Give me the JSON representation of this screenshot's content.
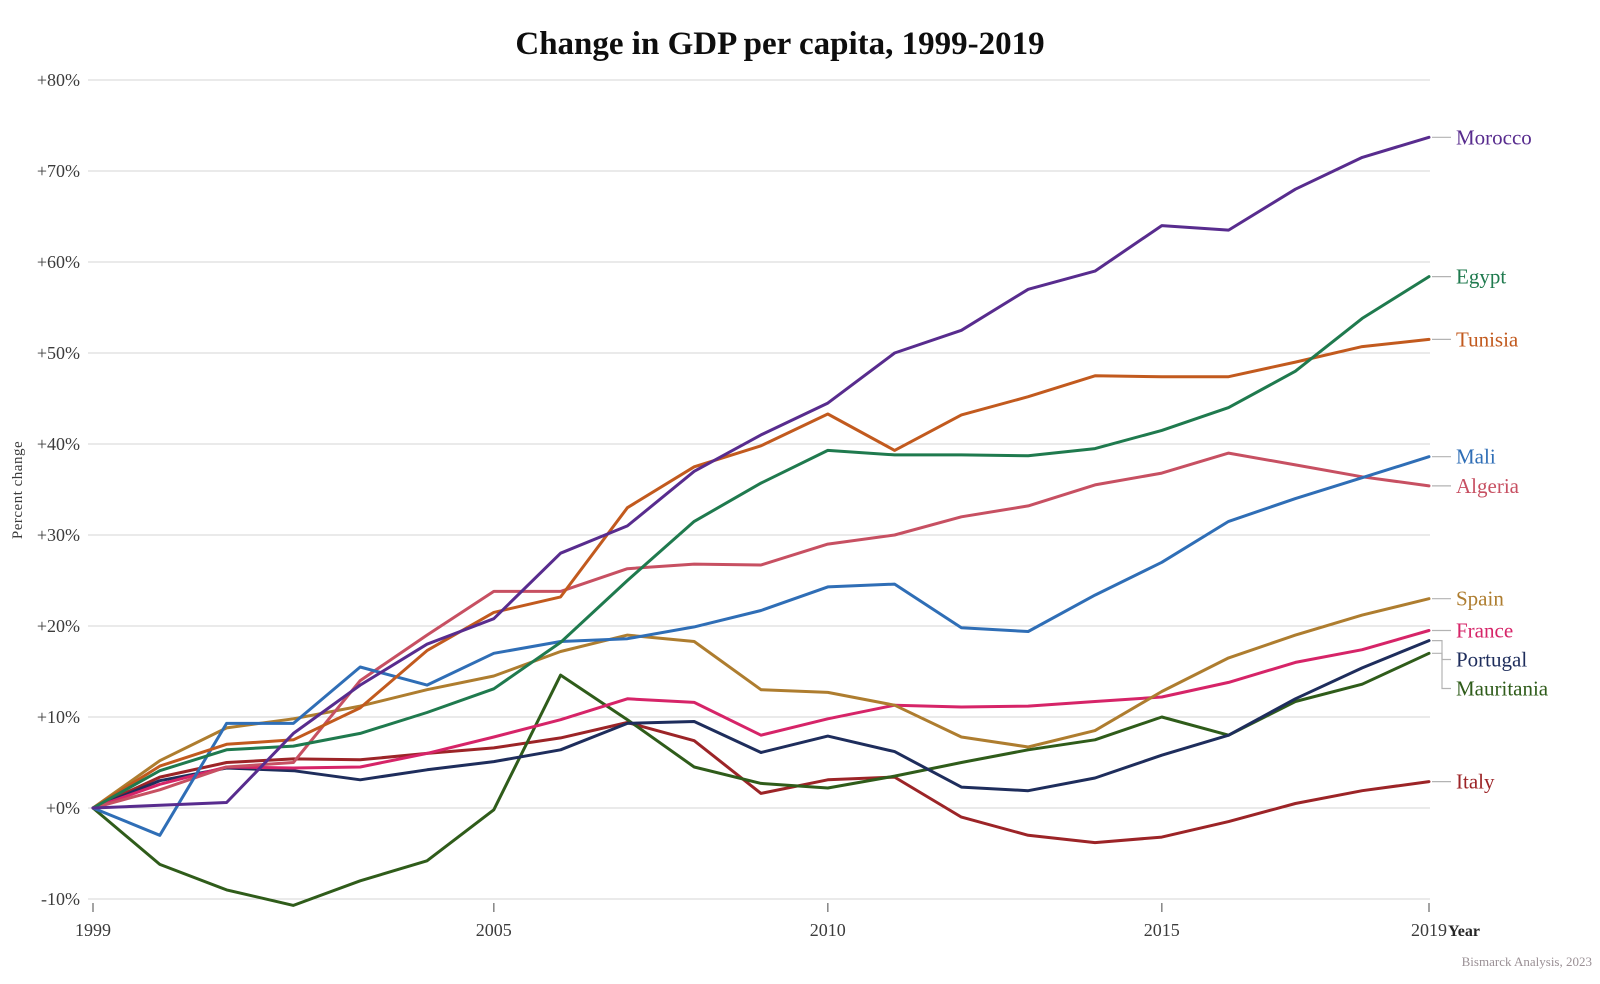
{
  "chart_data": {
    "type": "line",
    "title": "Change in GDP per capita, 1999-2019",
    "ylabel": "Percent change",
    "xlabel": "Year",
    "source": "Bismarck Analysis, 2023",
    "x": [
      1999,
      2000,
      2001,
      2002,
      2003,
      2004,
      2005,
      2006,
      2007,
      2008,
      2009,
      2010,
      2011,
      2012,
      2013,
      2014,
      2015,
      2016,
      2017,
      2018,
      2019
    ],
    "xlim": [
      1999,
      2019
    ],
    "ylim": [
      -10,
      80
    ],
    "grid": "horizontal",
    "legend_position": "right-labels",
    "y_ticks": [
      {
        "value": 80,
        "label": "+80%"
      },
      {
        "value": 70,
        "label": "+70%"
      },
      {
        "value": 60,
        "label": "+60%"
      },
      {
        "value": 50,
        "label": "+50%"
      },
      {
        "value": 40,
        "label": "+40%"
      },
      {
        "value": 30,
        "label": "+30%"
      },
      {
        "value": 20,
        "label": "+20%"
      },
      {
        "value": 10,
        "label": "+10%"
      },
      {
        "value": 0,
        "label": "+0%"
      },
      {
        "value": -10,
        "label": "-10%"
      }
    ],
    "x_ticks": [
      {
        "value": 1999,
        "label": "1999"
      },
      {
        "value": 2005,
        "label": "2005"
      },
      {
        "value": 2010,
        "label": "2010"
      },
      {
        "value": 2015,
        "label": "2015"
      },
      {
        "value": 2019,
        "label": "2019"
      }
    ],
    "series": [
      {
        "name": "Morocco",
        "color": "#582c8e",
        "values": [
          0,
          0.3,
          0.6,
          8.2,
          13.5,
          18.0,
          20.8,
          28.0,
          31.0,
          37.0,
          41.0,
          44.5,
          50.0,
          52.5,
          57.0,
          59.0,
          64.0,
          63.5,
          68.0,
          71.5,
          73.7
        ]
      },
      {
        "name": "Egypt",
        "color": "#1f7a4e",
        "values": [
          0,
          4.1,
          6.4,
          6.8,
          8.2,
          10.5,
          13.1,
          18.2,
          25.0,
          31.5,
          35.7,
          39.3,
          38.8,
          38.8,
          38.7,
          39.5,
          41.5,
          44.0,
          48.0,
          53.8,
          58.4
        ]
      },
      {
        "name": "Tunisia",
        "color": "#c25a1e",
        "values": [
          0,
          4.6,
          7.0,
          7.5,
          11.0,
          17.3,
          21.5,
          23.2,
          33.0,
          37.5,
          39.8,
          43.3,
          39.3,
          43.2,
          45.2,
          47.5,
          47.4,
          47.4,
          49.0,
          50.7,
          51.5
        ]
      },
      {
        "name": "Mali",
        "color": "#2f6eb6",
        "values": [
          0,
          -3.0,
          9.3,
          9.3,
          15.5,
          13.5,
          17.0,
          18.3,
          18.6,
          19.9,
          21.7,
          24.3,
          24.6,
          19.8,
          19.4,
          23.4,
          27.0,
          31.5,
          34.0,
          36.3,
          38.6
        ]
      },
      {
        "name": "Algeria",
        "color": "#c75062",
        "values": [
          0,
          2.0,
          4.5,
          5.0,
          14.0,
          19.0,
          23.8,
          23.8,
          26.3,
          26.8,
          26.7,
          29.0,
          30.0,
          32.0,
          33.2,
          35.5,
          36.8,
          39.0,
          37.7,
          36.4,
          35.4
        ]
      },
      {
        "name": "Spain",
        "color": "#ae7d2f",
        "values": [
          0,
          5.2,
          8.8,
          9.8,
          11.2,
          13.0,
          14.5,
          17.2,
          19.0,
          18.3,
          13.0,
          12.7,
          11.3,
          7.8,
          6.7,
          8.5,
          12.8,
          16.5,
          19.0,
          21.2,
          23.0
        ]
      },
      {
        "name": "France",
        "color": "#d62468",
        "values": [
          0,
          2.6,
          4.5,
          4.4,
          4.5,
          6.0,
          7.8,
          9.7,
          12.0,
          11.6,
          8.0,
          9.8,
          11.3,
          11.1,
          11.2,
          11.7,
          12.2,
          13.8,
          16.0,
          17.4,
          19.5
        ]
      },
      {
        "name": "Portugal",
        "color": "#1e2d5c",
        "values": [
          0,
          3.0,
          4.4,
          4.1,
          3.1,
          4.2,
          5.1,
          6.4,
          9.3,
          9.5,
          6.1,
          7.9,
          6.2,
          2.3,
          1.9,
          3.3,
          5.8,
          8.0,
          12.0,
          15.4,
          18.4
        ]
      },
      {
        "name": "Mauritania",
        "color": "#2f5c1a",
        "values": [
          0,
          -6.2,
          -9.0,
          -10.7,
          -8.0,
          -5.8,
          -0.2,
          14.6,
          9.7,
          4.5,
          2.7,
          2.2,
          3.5,
          5.0,
          6.4,
          7.5,
          10.0,
          8.0,
          11.7,
          13.6,
          17.0
        ]
      },
      {
        "name": "Italy",
        "color": "#9c2427",
        "values": [
          0,
          3.4,
          5.0,
          5.4,
          5.3,
          6.0,
          6.6,
          7.7,
          9.4,
          7.4,
          1.6,
          3.1,
          3.4,
          -1.0,
          -3.0,
          -3.8,
          -3.2,
          -1.5,
          0.5,
          1.9,
          2.9
        ]
      }
    ]
  }
}
